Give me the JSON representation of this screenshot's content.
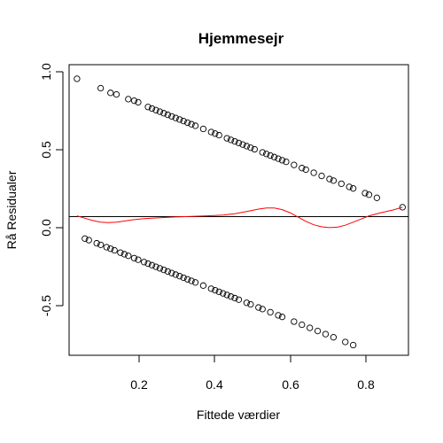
{
  "chart_data": {
    "type": "scatter",
    "title": "Hjemmesejr",
    "xlabel": "Fittede værdier",
    "ylabel": "Rå Residualer",
    "xlim": [
      0.03,
      0.89
    ],
    "ylim": [
      -0.815,
      1.04
    ],
    "xticks": [
      0.2,
      0.4,
      0.6,
      0.8
    ],
    "yticks": [
      -0.5,
      0.0,
      0.5,
      1.0
    ],
    "xtick_labels": [
      "0.2",
      "0.4",
      "0.6",
      "0.8"
    ],
    "ytick_labels": [
      "-0.5",
      "0.0",
      "0.5",
      "1.0"
    ],
    "grid": false,
    "reference_line_y": 0.07,
    "colors": {
      "points": "#000000",
      "smooth": "#ff0000",
      "reference": "#000000"
    },
    "series": [
      {
        "kind": "points",
        "marker": "open-circle",
        "upper_band": [
          [
            0.05,
            0.95
          ],
          [
            0.11,
            0.89
          ],
          [
            0.135,
            0.86
          ],
          [
            0.15,
            0.85
          ],
          [
            0.18,
            0.82
          ],
          [
            0.195,
            0.81
          ],
          [
            0.205,
            0.8
          ],
          [
            0.23,
            0.77
          ],
          [
            0.24,
            0.76
          ],
          [
            0.25,
            0.75
          ],
          [
            0.26,
            0.74
          ],
          [
            0.27,
            0.73
          ],
          [
            0.28,
            0.72
          ],
          [
            0.29,
            0.71
          ],
          [
            0.3,
            0.7
          ],
          [
            0.31,
            0.69
          ],
          [
            0.32,
            0.68
          ],
          [
            0.33,
            0.67
          ],
          [
            0.34,
            0.66
          ],
          [
            0.35,
            0.65
          ],
          [
            0.37,
            0.63
          ],
          [
            0.39,
            0.61
          ],
          [
            0.4,
            0.6
          ],
          [
            0.41,
            0.59
          ],
          [
            0.43,
            0.57
          ],
          [
            0.44,
            0.56
          ],
          [
            0.45,
            0.55
          ],
          [
            0.46,
            0.54
          ],
          [
            0.47,
            0.53
          ],
          [
            0.48,
            0.52
          ],
          [
            0.49,
            0.51
          ],
          [
            0.5,
            0.5
          ],
          [
            0.52,
            0.48
          ],
          [
            0.53,
            0.47
          ],
          [
            0.54,
            0.46
          ],
          [
            0.55,
            0.45
          ],
          [
            0.56,
            0.44
          ],
          [
            0.57,
            0.43
          ],
          [
            0.58,
            0.42
          ],
          [
            0.6,
            0.4
          ],
          [
            0.62,
            0.38
          ],
          [
            0.63,
            0.37
          ],
          [
            0.65,
            0.35
          ],
          [
            0.67,
            0.33
          ],
          [
            0.69,
            0.31
          ],
          [
            0.7,
            0.3
          ],
          [
            0.72,
            0.28
          ],
          [
            0.74,
            0.26
          ],
          [
            0.75,
            0.25
          ],
          [
            0.78,
            0.22
          ],
          [
            0.79,
            0.21
          ],
          [
            0.81,
            0.19
          ],
          [
            0.875,
            0.13
          ]
        ],
        "lower_band": [
          [
            0.07,
            -0.07
          ],
          [
            0.08,
            -0.08
          ],
          [
            0.1,
            -0.1
          ],
          [
            0.11,
            -0.11
          ],
          [
            0.125,
            -0.125
          ],
          [
            0.135,
            -0.135
          ],
          [
            0.145,
            -0.145
          ],
          [
            0.16,
            -0.16
          ],
          [
            0.17,
            -0.17
          ],
          [
            0.18,
            -0.18
          ],
          [
            0.195,
            -0.195
          ],
          [
            0.205,
            -0.205
          ],
          [
            0.22,
            -0.22
          ],
          [
            0.23,
            -0.23
          ],
          [
            0.24,
            -0.24
          ],
          [
            0.25,
            -0.25
          ],
          [
            0.26,
            -0.26
          ],
          [
            0.27,
            -0.27
          ],
          [
            0.28,
            -0.28
          ],
          [
            0.29,
            -0.29
          ],
          [
            0.3,
            -0.3
          ],
          [
            0.31,
            -0.31
          ],
          [
            0.32,
            -0.32
          ],
          [
            0.33,
            -0.33
          ],
          [
            0.34,
            -0.34
          ],
          [
            0.35,
            -0.35
          ],
          [
            0.37,
            -0.37
          ],
          [
            0.39,
            -0.39
          ],
          [
            0.4,
            -0.4
          ],
          [
            0.41,
            -0.41
          ],
          [
            0.42,
            -0.42
          ],
          [
            0.43,
            -0.43
          ],
          [
            0.44,
            -0.44
          ],
          [
            0.45,
            -0.45
          ],
          [
            0.46,
            -0.46
          ],
          [
            0.48,
            -0.48
          ],
          [
            0.49,
            -0.49
          ],
          [
            0.51,
            -0.51
          ],
          [
            0.52,
            -0.52
          ],
          [
            0.54,
            -0.54
          ],
          [
            0.56,
            -0.56
          ],
          [
            0.57,
            -0.57
          ],
          [
            0.6,
            -0.6
          ],
          [
            0.62,
            -0.62
          ],
          [
            0.64,
            -0.64
          ],
          [
            0.66,
            -0.66
          ],
          [
            0.68,
            -0.68
          ],
          [
            0.7,
            -0.7
          ],
          [
            0.73,
            -0.73
          ],
          [
            0.75,
            -0.75
          ]
        ]
      },
      {
        "kind": "smooth-line",
        "points": [
          [
            0.05,
            0.075
          ],
          [
            0.07,
            0.06
          ],
          [
            0.09,
            0.045
          ],
          [
            0.11,
            0.035
          ],
          [
            0.13,
            0.032
          ],
          [
            0.15,
            0.035
          ],
          [
            0.17,
            0.042
          ],
          [
            0.19,
            0.05
          ],
          [
            0.22,
            0.057
          ],
          [
            0.26,
            0.063
          ],
          [
            0.3,
            0.068
          ],
          [
            0.34,
            0.072
          ],
          [
            0.38,
            0.075
          ],
          [
            0.42,
            0.08
          ],
          [
            0.45,
            0.088
          ],
          [
            0.48,
            0.103
          ],
          [
            0.51,
            0.118
          ],
          [
            0.53,
            0.125
          ],
          [
            0.55,
            0.125
          ],
          [
            0.57,
            0.115
          ],
          [
            0.59,
            0.095
          ],
          [
            0.61,
            0.068
          ],
          [
            0.63,
            0.04
          ],
          [
            0.65,
            0.018
          ],
          [
            0.67,
            0.005
          ],
          [
            0.69,
            0.0
          ],
          [
            0.71,
            0.003
          ],
          [
            0.73,
            0.015
          ],
          [
            0.75,
            0.035
          ],
          [
            0.77,
            0.055
          ],
          [
            0.79,
            0.075
          ],
          [
            0.82,
            0.095
          ],
          [
            0.85,
            0.112
          ],
          [
            0.875,
            0.13
          ]
        ]
      }
    ]
  }
}
